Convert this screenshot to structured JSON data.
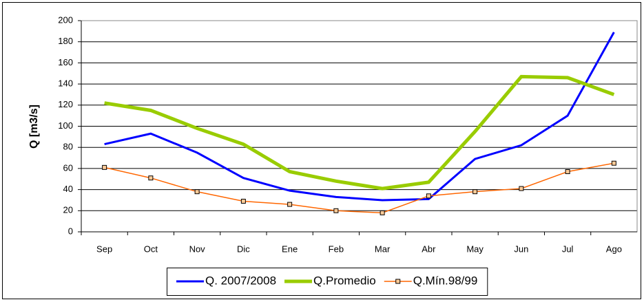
{
  "chart_data": {
    "type": "line",
    "y_label": "Q [m3/s]",
    "categories": [
      "Sep",
      "Oct",
      "Nov",
      "Dic",
      "Ene",
      "Feb",
      "Mar",
      "Abr",
      "May",
      "Jun",
      "Jul",
      "Ago"
    ],
    "series": [
      {
        "name": "Q. 2007/2008",
        "color": "#0000ff",
        "width": 3,
        "marker": false,
        "values": [
          83,
          93,
          75,
          51,
          39,
          33,
          30,
          31,
          69,
          82,
          110,
          189
        ]
      },
      {
        "name": "Q.Promedio",
        "color": "#99cc00",
        "width": 5,
        "marker": false,
        "values": [
          122,
          115,
          98,
          83,
          57,
          48,
          41,
          47,
          95,
          147,
          146,
          130
        ]
      },
      {
        "name": "Q.Mín.98/99",
        "color": "#ff6600",
        "width": 1.5,
        "marker": true,
        "values": [
          61,
          51,
          38,
          29,
          26,
          20,
          18,
          34,
          38,
          41,
          57,
          65
        ]
      }
    ],
    "ylim": [
      0,
      200
    ],
    "yticks": [
      0,
      20,
      40,
      60,
      80,
      100,
      120,
      140,
      160,
      180,
      200
    ],
    "grid": true,
    "legend": "bottom"
  }
}
